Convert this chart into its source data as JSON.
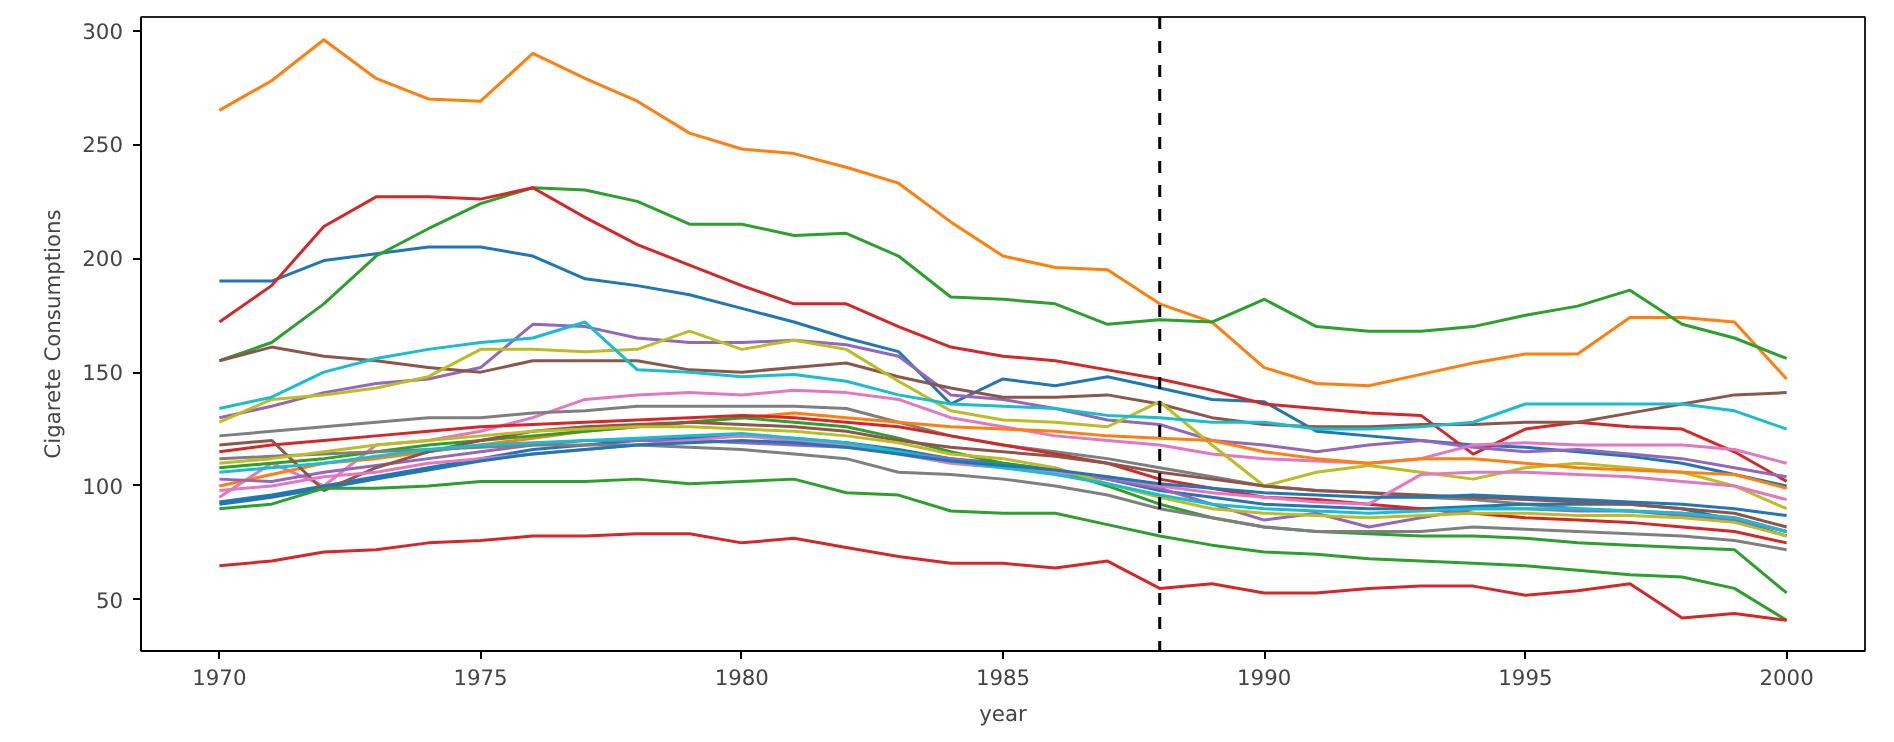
{
  "chart_data": {
    "type": "line",
    "xlabel": "year",
    "ylabel": "Cigarete Consumptions",
    "x": [
      1970,
      1971,
      1972,
      1973,
      1974,
      1975,
      1976,
      1977,
      1978,
      1979,
      1980,
      1981,
      1982,
      1983,
      1984,
      1985,
      1986,
      1987,
      1988,
      1989,
      1990,
      1991,
      1992,
      1993,
      1994,
      1995,
      1996,
      1997,
      1998,
      1999,
      2000
    ],
    "xlim": [
      1968.5,
      2001.5
    ],
    "ylim": [
      27.5,
      306
    ],
    "xticks": [
      1970,
      1975,
      1980,
      1985,
      1990,
      1995,
      2000
    ],
    "yticks": [
      50,
      100,
      150,
      200,
      250,
      300
    ],
    "grid": false,
    "line_style": "solid",
    "marker": "none",
    "ref_lines": [
      {
        "axis": "x",
        "value": 1988,
        "color": "#000000",
        "line_style": "dashed"
      }
    ],
    "series": [
      {
        "color": "#1f77b4",
        "values": [
          190,
          190,
          199,
          202,
          205,
          205,
          201,
          191,
          188,
          184,
          178,
          172,
          165,
          159,
          136,
          147,
          144,
          148,
          143,
          138,
          137,
          124,
          122,
          120,
          118,
          117,
          115,
          113,
          110,
          105,
          100
        ]
      },
      {
        "color": "#ff7f0e",
        "values": [
          265,
          278,
          296,
          279,
          270,
          269,
          290,
          279,
          269,
          255,
          248,
          246,
          240,
          233,
          216,
          201,
          196,
          195,
          180,
          172,
          152,
          145,
          144,
          149,
          154,
          158,
          158,
          174,
          174,
          172,
          147
        ]
      },
      {
        "color": "#2ca02c",
        "values": [
          155,
          163,
          180,
          201,
          213,
          224,
          231,
          230,
          225,
          215,
          215,
          210,
          211,
          201,
          183,
          182,
          180,
          171,
          173,
          172,
          182,
          170,
          168,
          168,
          170,
          175,
          179,
          186,
          171,
          165,
          156
        ]
      },
      {
        "color": "#d62728",
        "values": [
          172,
          188,
          214,
          227,
          227,
          226,
          231,
          218,
          206,
          197,
          188,
          180,
          180,
          170,
          161,
          157,
          155,
          151,
          147,
          142,
          136,
          134,
          132,
          131,
          114,
          125,
          128,
          126,
          125,
          115,
          102
        ]
      },
      {
        "color": "#9467bd",
        "values": [
          130,
          135,
          141,
          145,
          147,
          152,
          171,
          170,
          165,
          163,
          163,
          164,
          162,
          157,
          140,
          138,
          134,
          129,
          127,
          120,
          118,
          115,
          118,
          120,
          117,
          115,
          116,
          114,
          112,
          108,
          104
        ]
      },
      {
        "color": "#8c564b",
        "values": [
          155,
          161,
          157,
          155,
          152,
          150,
          155,
          155,
          155,
          151,
          150,
          152,
          154,
          148,
          143,
          139,
          139,
          140,
          136,
          130,
          127,
          126,
          126,
          127,
          127,
          128,
          128,
          132,
          136,
          140,
          141
        ]
      },
      {
        "color": "#e377c2",
        "values": [
          95,
          110,
          100,
          118,
          120,
          124,
          130,
          138,
          140,
          141,
          140,
          142,
          141,
          138,
          130,
          126,
          122,
          120,
          118,
          114,
          112,
          111,
          110,
          112,
          118,
          119,
          118,
          118,
          118,
          116,
          110
        ]
      },
      {
        "color": "#7f7f7f",
        "values": [
          122,
          124,
          126,
          128,
          130,
          130,
          132,
          133,
          135,
          135,
          135,
          135,
          134,
          128,
          122,
          118,
          115,
          112,
          108,
          104,
          100,
          98,
          97,
          95,
          94,
          92,
          90,
          89,
          88,
          86,
          80
        ]
      },
      {
        "color": "#bcbd22",
        "values": [
          128,
          138,
          140,
          143,
          148,
          160,
          160,
          159,
          160,
          168,
          160,
          164,
          160,
          146,
          133,
          129,
          128,
          126,
          137,
          118,
          100,
          106,
          109,
          106,
          103,
          108,
          110,
          108,
          106,
          100,
          90
        ]
      },
      {
        "color": "#17becf",
        "values": [
          134,
          139,
          150,
          156,
          160,
          163,
          165,
          172,
          151,
          150,
          148,
          149,
          146,
          140,
          136,
          135,
          134,
          131,
          130,
          128,
          128,
          125,
          125,
          126,
          128,
          136,
          136,
          136,
          136,
          133,
          125
        ]
      },
      {
        "color": "#1f77b4",
        "values": [
          93,
          96,
          100,
          104,
          108,
          112,
          116,
          118,
          120,
          121,
          122,
          121,
          119,
          116,
          112,
          110,
          107,
          103,
          98,
          95,
          92,
          91,
          90,
          90,
          91,
          92,
          92,
          92,
          90,
          85,
          78
        ]
      },
      {
        "color": "#ff7f0e",
        "values": [
          100,
          105,
          110,
          112,
          115,
          118,
          121,
          124,
          126,
          128,
          130,
          132,
          130,
          128,
          126,
          125,
          124,
          122,
          121,
          120,
          115,
          112,
          110,
          112,
          112,
          110,
          108,
          107,
          106,
          105,
          99
        ]
      },
      {
        "color": "#2ca02c",
        "values": [
          108,
          110,
          112,
          115,
          118,
          120,
          122,
          124,
          126,
          128,
          130,
          128,
          126,
          121,
          115,
          110,
          107,
          100,
          92,
          86,
          82,
          80,
          79,
          78,
          78,
          77,
          75,
          74,
          73,
          72,
          53
        ]
      },
      {
        "color": "#d62728",
        "values": [
          115,
          118,
          120,
          122,
          124,
          126,
          127,
          128,
          129,
          130,
          131,
          130,
          128,
          126,
          122,
          118,
          114,
          110,
          103,
          99,
          95,
          94,
          92,
          90,
          88,
          86,
          85,
          84,
          82,
          80,
          75
        ]
      },
      {
        "color": "#9467bd",
        "values": [
          103,
          102,
          106,
          109,
          112,
          115,
          118,
          120,
          120,
          120,
          119,
          118,
          117,
          115,
          112,
          109,
          106,
          103,
          99,
          92,
          85,
          88,
          82,
          86,
          90,
          90,
          89,
          89,
          87,
          85,
          80
        ]
      },
      {
        "color": "#8c564b",
        "values": [
          118,
          120,
          98,
          108,
          115,
          120,
          124,
          126,
          127,
          128,
          127,
          126,
          124,
          120,
          117,
          115,
          113,
          110,
          106,
          103,
          100,
          98,
          97,
          96,
          95,
          94,
          93,
          92,
          90,
          88,
          82
        ]
      },
      {
        "color": "#e377c2",
        "values": [
          98,
          100,
          104,
          106,
          110,
          112,
          114,
          116,
          118,
          120,
          122,
          120,
          118,
          114,
          110,
          108,
          106,
          104,
          100,
          97,
          95,
          93,
          92,
          105,
          106,
          106,
          105,
          104,
          102,
          100,
          94
        ]
      },
      {
        "color": "#7f7f7f",
        "values": [
          112,
          113,
          114,
          115,
          116,
          117,
          118,
          118,
          118,
          117,
          116,
          114,
          112,
          106,
          105,
          103,
          100,
          96,
          90,
          86,
          82,
          80,
          80,
          80,
          82,
          81,
          80,
          79,
          78,
          76,
          72
        ]
      },
      {
        "color": "#bcbd22",
        "values": [
          110,
          112,
          115,
          118,
          120,
          122,
          124,
          125,
          126,
          126,
          125,
          124,
          122,
          119,
          114,
          112,
          108,
          101,
          95,
          90,
          88,
          87,
          86,
          87,
          88,
          88,
          87,
          87,
          86,
          84,
          78
        ]
      },
      {
        "color": "#17becf",
        "values": [
          106,
          108,
          110,
          113,
          116,
          118,
          119,
          120,
          121,
          122,
          123,
          121,
          119,
          115,
          111,
          108,
          105,
          101,
          96,
          92,
          90,
          89,
          88,
          89,
          90,
          90,
          90,
          89,
          88,
          86,
          80
        ]
      },
      {
        "color": "#1f77b4",
        "values": [
          92,
          95,
          99,
          103,
          107,
          111,
          114,
          116,
          118,
          119,
          120,
          119,
          117,
          114,
          111,
          109,
          107,
          104,
          101,
          99,
          97,
          96,
          95,
          95,
          96,
          95,
          94,
          93,
          92,
          90,
          87
        ]
      },
      {
        "color": "#2ca02c",
        "values": [
          90,
          92,
          99,
          99,
          100,
          102,
          102,
          102,
          103,
          101,
          102,
          103,
          97,
          96,
          89,
          88,
          88,
          83,
          78,
          74,
          71,
          70,
          68,
          67,
          66,
          65,
          63,
          61,
          60,
          55,
          41
        ]
      },
      {
        "color": "#d62728",
        "values": [
          65,
          67,
          71,
          72,
          75,
          76,
          78,
          78,
          79,
          79,
          75,
          77,
          73,
          69,
          66,
          66,
          64,
          67,
          55,
          57,
          53,
          53,
          55,
          56,
          56,
          52,
          54,
          57,
          42,
          44,
          41
        ]
      }
    ]
  }
}
